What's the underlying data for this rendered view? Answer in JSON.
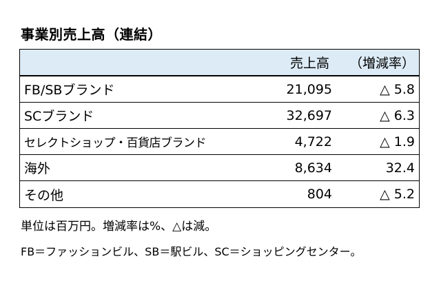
{
  "title": "事業別売上高（連結）",
  "table": {
    "headers": {
      "name": "",
      "sales": "売上高",
      "rate": "（増減率）"
    },
    "header_bg": "#dcebf5",
    "rows": [
      {
        "name": "FB/SBブランド",
        "sales": "21,095",
        "rate": "△ 5.8"
      },
      {
        "name": "SCブランド",
        "sales": "32,697",
        "rate": "△ 6.3"
      },
      {
        "name": "セレクトショップ・百貨店ブランド",
        "sales": "4,722",
        "rate": "△ 1.9"
      },
      {
        "name": "海外",
        "sales": "8,634",
        "rate": "32.4"
      },
      {
        "name": "その他",
        "sales": "804",
        "rate": "△ 5.2"
      }
    ]
  },
  "notes": [
    "単位は百万円。増減率は%、△は減。",
    "FB＝ファッションビル、SB＝駅ビル、SC＝ショッピングセンター。"
  ]
}
